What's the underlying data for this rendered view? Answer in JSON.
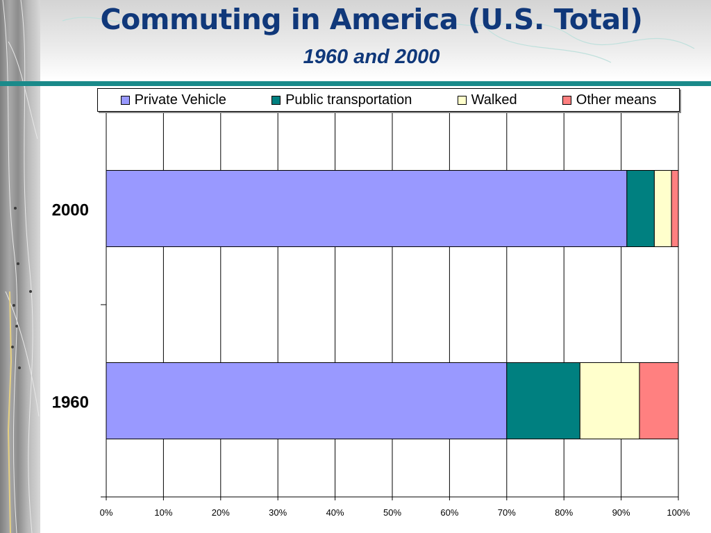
{
  "slide": {
    "title": "Commuting in America (U.S. Total)",
    "subtitle": "1960 and 2000"
  },
  "theme": {
    "title_color": "#10387a",
    "rule_color": "#1a8a8a"
  },
  "chart_data": {
    "type": "bar",
    "orientation": "horizontal",
    "stacking": "100% stacked",
    "categories": [
      "2000",
      "1960"
    ],
    "series": [
      {
        "name": "Private Vehicle",
        "color": "#9999ff",
        "values": [
          91,
          70
        ]
      },
      {
        "name": "Public transportation",
        "color": "#008080",
        "values": [
          4.8,
          12.8
        ]
      },
      {
        "name": "Walked",
        "color": "#ffffcc",
        "values": [
          3,
          10.4
        ]
      },
      {
        "name": "Other means",
        "color": "#ff8080",
        "values": [
          1.2,
          6.8
        ]
      }
    ],
    "x_ticks": [
      "0%",
      "10%",
      "20%",
      "30%",
      "40%",
      "50%",
      "60%",
      "70%",
      "80%",
      "90%",
      "100%"
    ],
    "xlim": [
      0,
      100
    ],
    "grid": "vertical",
    "legend_position": "top"
  }
}
